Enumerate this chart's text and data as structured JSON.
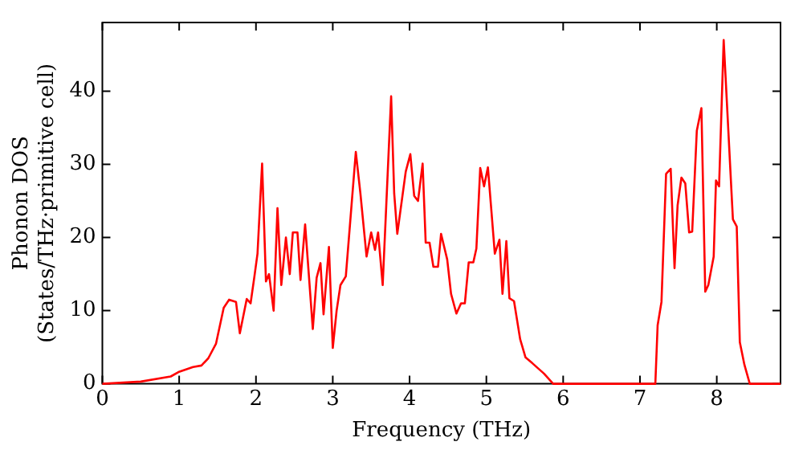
{
  "chart_data": {
    "type": "line",
    "xlabel": "Frequency (THz)",
    "ylabel": "Phonon DOS\n(States/THz·primitive cell)",
    "xlim": [
      0,
      8.83
    ],
    "ylim": [
      0,
      49.4
    ],
    "xticks": [
      0,
      1,
      2,
      3,
      4,
      5,
      6,
      7,
      8
    ],
    "yticks": [
      0,
      10,
      20,
      30,
      40
    ],
    "grid": false,
    "legend": false,
    "marker": "none",
    "line_style": "solid",
    "series": [
      {
        "color": "#ff0000",
        "x": [
          0,
          0.5,
          0.89,
          0.99,
          1.18,
          1.29,
          1.38,
          1.48,
          1.58,
          1.65,
          1.74,
          1.79,
          1.88,
          1.93,
          1.98,
          2.02,
          2.08,
          2.13,
          2.17,
          2.23,
          2.28,
          2.33,
          2.39,
          2.44,
          2.48,
          2.54,
          2.58,
          2.64,
          2.74,
          2.79,
          2.84,
          2.88,
          2.95,
          3.0,
          3.05,
          3.1,
          3.17,
          3.3,
          3.36,
          3.44,
          3.5,
          3.55,
          3.59,
          3.65,
          3.76,
          3.8,
          3.84,
          3.95,
          4.01,
          4.06,
          4.11,
          4.17,
          4.21,
          4.26,
          4.31,
          4.37,
          4.41,
          4.49,
          4.54,
          4.61,
          4.67,
          4.72,
          4.77,
          4.83,
          4.87,
          4.92,
          4.97,
          5.02,
          5.11,
          5.17,
          5.21,
          5.26,
          5.3,
          5.36,
          5.44,
          5.51,
          5.6,
          5.75,
          5.87,
          7.2,
          7.23,
          7.28,
          7.34,
          7.4,
          7.45,
          7.49,
          7.54,
          7.59,
          7.64,
          7.68,
          7.74,
          7.8,
          7.85,
          7.89,
          7.96,
          7.99,
          8.03,
          8.09,
          8.21,
          8.26,
          8.3,
          8.36,
          8.43,
          8.83
        ],
        "values": [
          0,
          0.3,
          1,
          1.6,
          2.3,
          2.5,
          3.5,
          5.5,
          10.4,
          11.5,
          11.2,
          6.9,
          11.6,
          11,
          14.7,
          17.8,
          30.1,
          14,
          15,
          10,
          24,
          13.5,
          20,
          15,
          20.7,
          20.7,
          14.2,
          21.8,
          7.5,
          14.5,
          16.5,
          9.5,
          18.7,
          4.9,
          10,
          13.5,
          14.7,
          31.7,
          26,
          17.4,
          20.7,
          18.3,
          20.7,
          13.5,
          39.3,
          26,
          20.5,
          29,
          31.4,
          25.7,
          25,
          30.1,
          19.3,
          19.3,
          16,
          16,
          20.5,
          17,
          12.3,
          9.6,
          11,
          11,
          16.6,
          16.6,
          18.5,
          29.5,
          27,
          29.6,
          17.8,
          19.7,
          12.3,
          19.5,
          11.7,
          11.3,
          6.1,
          3.6,
          2.8,
          1.4,
          0,
          0,
          8,
          11.2,
          28.7,
          29.4,
          15.8,
          24.4,
          28.2,
          27.4,
          20.7,
          20.8,
          34.6,
          37.7,
          12.6,
          13.5,
          17.4,
          27.8,
          27,
          47,
          22.5,
          21.5,
          5.7,
          2.6,
          0,
          0
        ]
      }
    ]
  }
}
